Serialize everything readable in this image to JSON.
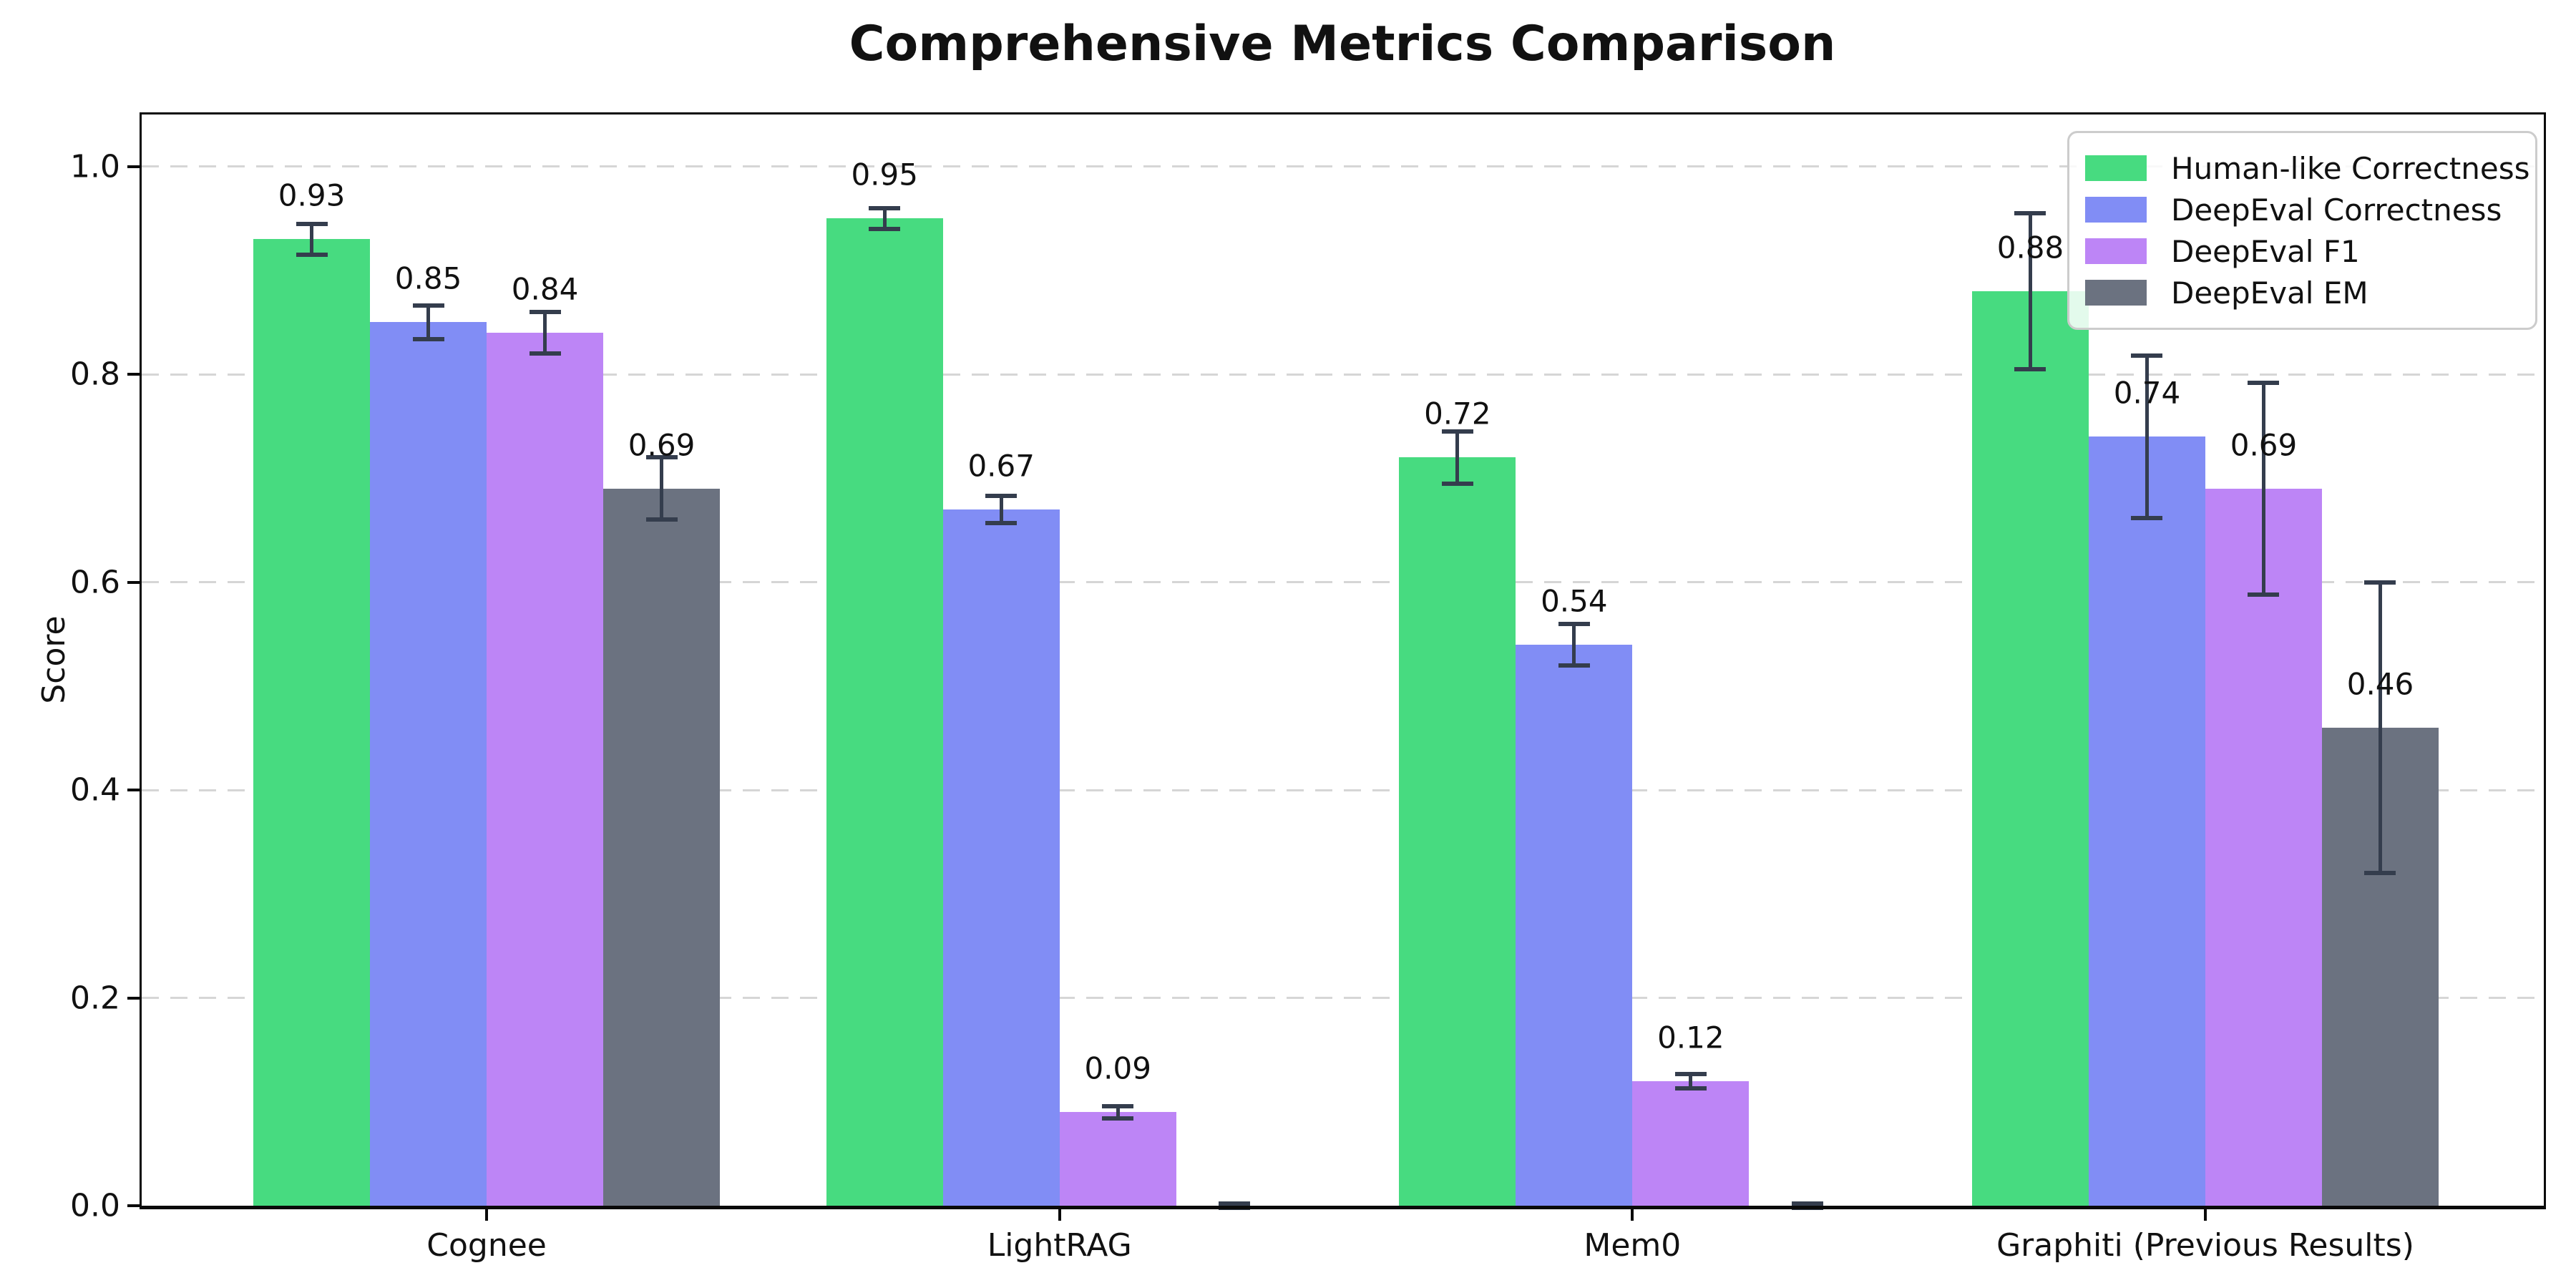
{
  "title": "Comprehensive Metrics Comparison",
  "chart_data": {
    "type": "bar",
    "title": "Comprehensive Metrics Comparison",
    "categories": [
      "Cognee",
      "LightRAG",
      "Mem0",
      "Graphiti (Previous Results)"
    ],
    "series": [
      {
        "name": "Human-like Correctness",
        "color": "#47db80",
        "values": [
          0.93,
          0.95,
          0.72,
          0.88
        ],
        "errors": [
          0.015,
          0.01,
          0.025,
          0.075
        ]
      },
      {
        "name": "DeepEval Correctness",
        "color": "#818df5",
        "values": [
          0.85,
          0.67,
          0.54,
          0.74
        ],
        "errors": [
          0.016,
          0.013,
          0.02,
          0.078
        ]
      },
      {
        "name": "DeepEval F1",
        "color": "#bd85f6",
        "values": [
          0.84,
          0.09,
          0.12,
          0.69
        ],
        "errors": [
          0.02,
          0.006,
          0.007,
          0.102
        ]
      },
      {
        "name": "DeepEval EM",
        "color": "#6b7280",
        "values": [
          0.69,
          0.0,
          0.0,
          0.46
        ],
        "errors": [
          0.03,
          0.002,
          0.002,
          0.14
        ]
      }
    ],
    "bar_value_labels": [
      "0.93",
      "0.85",
      "0.84",
      "0.69",
      "0.95",
      "0.67",
      "0.09",
      "0.72",
      "0.54",
      "0.12",
      "0.88",
      "0.74",
      "0.69",
      "0.46"
    ],
    "xlabel": "",
    "ylabel": "Score",
    "ylim": [
      0,
      1.05
    ],
    "yticks": [
      "0.0",
      "0.2",
      "0.4",
      "0.6",
      "0.8",
      "1.0"
    ],
    "grid": "horizontal-dashed",
    "legend_position": "upper-right",
    "error_bar_color": "#343d4d",
    "axis_color": "#0a0a0a",
    "gridline_color": "#d6d6d6"
  }
}
